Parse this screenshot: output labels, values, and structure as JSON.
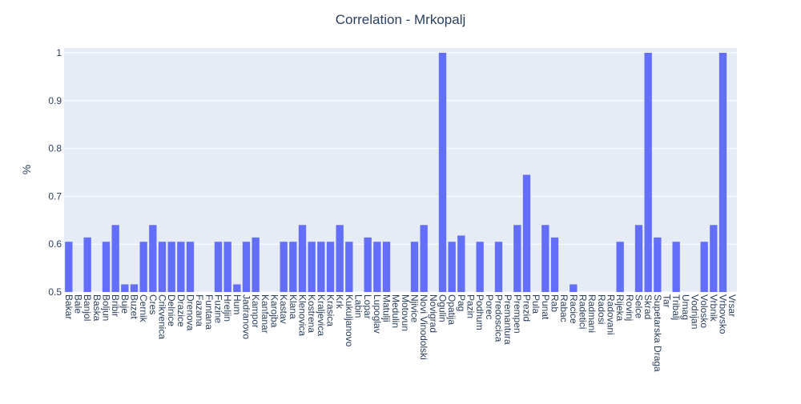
{
  "chart_data": {
    "type": "bar",
    "title": "Correlation - Mrkopalj",
    "xlabel": "",
    "ylabel": "%",
    "ylim": [
      0.5,
      1.01
    ],
    "yticks": [
      "0.5",
      "0.6",
      "0.7",
      "0.8",
      "0.9",
      "1"
    ],
    "grid": true,
    "colors": {
      "bar": "#636efa",
      "plot_bg": "#e5ecf6",
      "grid": "#ffffff",
      "text": "#2a3f5f"
    },
    "categories": [
      "Bakar",
      "Bale",
      "Banjol",
      "Baska",
      "Boljun",
      "Bribir",
      "Buje",
      "Buzet",
      "Cernik",
      "Cres",
      "Crikvenica",
      "Delnice",
      "Drazice",
      "Drenova",
      "Fazana",
      "Funtana",
      "Fuzine",
      "Hreljin",
      "Hum",
      "Jadranovo",
      "Kampor",
      "Kanfanar",
      "Karojba",
      "Kastav",
      "Klana",
      "Klenovica",
      "Kostrena",
      "Kraljevica",
      "Krasica",
      "Krk",
      "Kukuljanovo",
      "Labin",
      "Lopar",
      "Lupoglav",
      "Matulji",
      "Medulin",
      "Motovun",
      "Njivice",
      "Novi Vinodolski",
      "Novigrad",
      "Ogulin",
      "Opatija",
      "Pag",
      "Pazin",
      "Podhum",
      "Porec",
      "Predoscica",
      "Premantura",
      "Prempen",
      "Prezid",
      "Pula",
      "Punat",
      "Rab",
      "Rabac",
      "Racice",
      "Radetici",
      "Radmani",
      "Radosi",
      "Radovani",
      "Rijeka",
      "Rovinj",
      "Selce",
      "Skrad",
      "Supetarska Draga",
      "Tar",
      "Tribalj",
      "Umag",
      "Vodnjan",
      "Volosko",
      "Vrbnik",
      "Vrbovsko",
      "Vrsar"
    ],
    "values": [
      0.605,
      null,
      0.614,
      null,
      0.605,
      0.64,
      0.516,
      0.516,
      0.605,
      0.64,
      0.605,
      0.605,
      0.605,
      0.605,
      null,
      null,
      0.605,
      0.605,
      0.516,
      0.605,
      0.614,
      null,
      null,
      0.605,
      0.605,
      0.64,
      0.605,
      0.605,
      0.605,
      0.64,
      0.605,
      null,
      0.614,
      0.605,
      0.605,
      null,
      null,
      0.605,
      0.64,
      null,
      1.0,
      0.605,
      0.618,
      null,
      0.605,
      null,
      0.605,
      null,
      0.64,
      0.745,
      null,
      0.64,
      0.614,
      null,
      0.516,
      null,
      null,
      null,
      null,
      0.605,
      null,
      0.64,
      1.0,
      0.614,
      null,
      0.605,
      null,
      null,
      0.605,
      0.64,
      1.0,
      null
    ]
  }
}
